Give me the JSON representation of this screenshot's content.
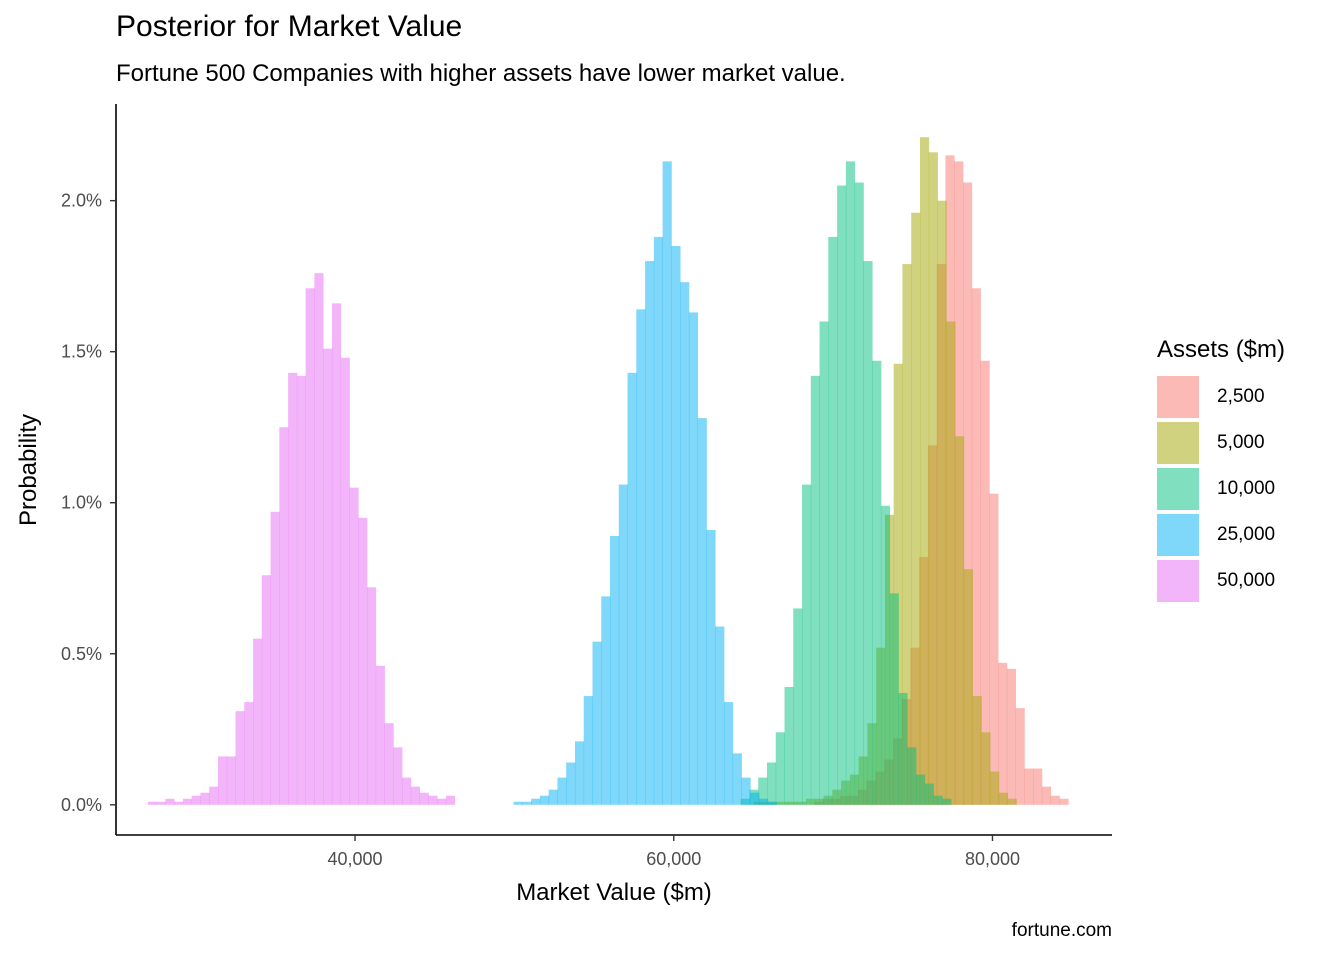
{
  "chart_data": {
    "type": "histogram",
    "title": "Posterior for Market Value",
    "subtitle": "Fortune 500 Companies with higher assets have lower market value.",
    "caption": "fortune.com",
    "xlabel": "Market Value ($m)",
    "ylabel": "Probability",
    "xlim": [
      25000,
      87500
    ],
    "ylim": [
      -0.001,
      0.0232
    ],
    "x_ticks": [
      40000,
      60000,
      80000
    ],
    "x_tick_labels": [
      "40,000",
      "60,000",
      "80,000"
    ],
    "y_ticks": [
      0,
      0.005,
      0.01,
      0.015,
      0.02
    ],
    "y_tick_labels": [
      "0.0%",
      "0.5%",
      "1.0%",
      "1.5%",
      "2.0%"
    ],
    "bar_opacity": 0.5,
    "legend": {
      "title": "Assets ($m)",
      "position": "right"
    },
    "series": [
      {
        "name": "2,500",
        "color": "#F8766D",
        "bins": [
          [
            68800,
            69350,
            0.0001
          ],
          [
            69350,
            69900,
            0.0002
          ],
          [
            69900,
            70450,
            0.0002
          ],
          [
            70450,
            71000,
            0.0003
          ],
          [
            71000,
            71550,
            0.0003
          ],
          [
            71550,
            72100,
            0.0005
          ],
          [
            72100,
            72650,
            0.0008
          ],
          [
            72650,
            73200,
            0.0011
          ],
          [
            73200,
            73750,
            0.0015
          ],
          [
            73750,
            74300,
            0.0022
          ],
          [
            74300,
            74850,
            0.0035
          ],
          [
            74850,
            75400,
            0.0052
          ],
          [
            75400,
            75950,
            0.0082
          ],
          [
            75950,
            76500,
            0.0119
          ],
          [
            76500,
            77050,
            0.0179
          ],
          [
            77050,
            77600,
            0.0215
          ],
          [
            77600,
            78150,
            0.0213
          ],
          [
            78150,
            78700,
            0.0206
          ],
          [
            78700,
            79250,
            0.0171
          ],
          [
            79250,
            79800,
            0.0147
          ],
          [
            79800,
            80350,
            0.0103
          ],
          [
            80350,
            80900,
            0.0047
          ],
          [
            80900,
            81450,
            0.0045
          ],
          [
            81450,
            82000,
            0.0032
          ],
          [
            82000,
            82550,
            0.0012
          ],
          [
            82550,
            83100,
            0.0012
          ],
          [
            83100,
            83650,
            0.0006
          ],
          [
            83650,
            84200,
            0.0003
          ],
          [
            84200,
            84750,
            0.0002
          ]
        ]
      },
      {
        "name": "5,000",
        "color": "#A3A500",
        "bins": [
          [
            65000,
            65550,
            0.0001
          ],
          [
            65550,
            66100,
            0.0001
          ],
          [
            66100,
            66650,
            0.0001
          ],
          [
            66650,
            67200,
            0.0001
          ],
          [
            67200,
            67750,
            0.0001
          ],
          [
            67750,
            68300,
            0.0001
          ],
          [
            68300,
            68850,
            0.0002
          ],
          [
            68850,
            69400,
            0.0002
          ],
          [
            69400,
            69950,
            0.0003
          ],
          [
            69950,
            70500,
            0.0005
          ],
          [
            70500,
            71050,
            0.0008
          ],
          [
            71050,
            71600,
            0.001
          ],
          [
            71600,
            72150,
            0.0016
          ],
          [
            72150,
            72700,
            0.0027
          ],
          [
            72700,
            73250,
            0.0052
          ],
          [
            73250,
            73800,
            0.0096
          ],
          [
            73800,
            74350,
            0.0146
          ],
          [
            74350,
            74900,
            0.0179
          ],
          [
            74900,
            75450,
            0.0196
          ],
          [
            75450,
            76000,
            0.0221
          ],
          [
            76000,
            76550,
            0.0216
          ],
          [
            76550,
            77100,
            0.02
          ],
          [
            77100,
            77650,
            0.016
          ],
          [
            77650,
            78200,
            0.0122
          ],
          [
            78200,
            78750,
            0.0078
          ],
          [
            78750,
            79300,
            0.0036
          ],
          [
            79300,
            79850,
            0.0024
          ],
          [
            79850,
            80400,
            0.0011
          ],
          [
            80400,
            80950,
            0.0004
          ],
          [
            80950,
            81500,
            0.0002
          ]
        ]
      },
      {
        "name": "10,000",
        "color": "#00BF7D",
        "bins": [
          [
            64200,
            64750,
            0.0002
          ],
          [
            64750,
            65300,
            0.0005
          ],
          [
            65300,
            65850,
            0.0009
          ],
          [
            65850,
            66400,
            0.0014
          ],
          [
            66400,
            66950,
            0.0024
          ],
          [
            66950,
            67500,
            0.0039
          ],
          [
            67500,
            68050,
            0.0065
          ],
          [
            68050,
            68600,
            0.0106
          ],
          [
            68600,
            69150,
            0.0142
          ],
          [
            69150,
            69700,
            0.016
          ],
          [
            69700,
            70250,
            0.0188
          ],
          [
            70250,
            70800,
            0.0205
          ],
          [
            70800,
            71350,
            0.0213
          ],
          [
            71350,
            71900,
            0.0206
          ],
          [
            71900,
            72450,
            0.018
          ],
          [
            72450,
            73000,
            0.0147
          ],
          [
            73000,
            73550,
            0.0099
          ],
          [
            73550,
            74100,
            0.007
          ],
          [
            74100,
            74650,
            0.0037
          ],
          [
            74650,
            75200,
            0.0019
          ],
          [
            75200,
            75750,
            0.001
          ],
          [
            75750,
            76300,
            0.0007
          ],
          [
            76300,
            76850,
            0.0003
          ],
          [
            76850,
            77400,
            0.0002
          ]
        ]
      },
      {
        "name": "25,000",
        "color": "#00B0F6",
        "bins": [
          [
            49950,
            50500,
            0.0001
          ],
          [
            50500,
            51050,
            0.0001
          ],
          [
            51050,
            51600,
            0.0002
          ],
          [
            51600,
            52150,
            0.0003
          ],
          [
            52150,
            52700,
            0.0005
          ],
          [
            52700,
            53250,
            0.0009
          ],
          [
            53250,
            53800,
            0.0014
          ],
          [
            53800,
            54350,
            0.0021
          ],
          [
            54350,
            54900,
            0.0036
          ],
          [
            54900,
            55450,
            0.0054
          ],
          [
            55450,
            56000,
            0.0069
          ],
          [
            56000,
            56550,
            0.0089
          ],
          [
            56550,
            57100,
            0.0106
          ],
          [
            57100,
            57650,
            0.0143
          ],
          [
            57650,
            58200,
            0.0164
          ],
          [
            58200,
            58750,
            0.018
          ],
          [
            58750,
            59300,
            0.0188
          ],
          [
            59300,
            59850,
            0.0213
          ],
          [
            59850,
            60400,
            0.0185
          ],
          [
            60400,
            60950,
            0.0173
          ],
          [
            60950,
            61500,
            0.0163
          ],
          [
            61500,
            62050,
            0.0128
          ],
          [
            62050,
            62600,
            0.0091
          ],
          [
            62600,
            63150,
            0.0059
          ],
          [
            63150,
            63700,
            0.0034
          ],
          [
            63700,
            64250,
            0.0017
          ],
          [
            64250,
            64800,
            0.0009
          ],
          [
            64800,
            65350,
            0.0004
          ],
          [
            65350,
            65900,
            0.0002
          ],
          [
            65900,
            66450,
            0.0001
          ]
        ]
      },
      {
        "name": "50,000",
        "color": "#E76BF3",
        "bins": [
          [
            27000,
            27550,
            0.0001
          ],
          [
            27550,
            28100,
            0.0001
          ],
          [
            28100,
            28650,
            0.0002
          ],
          [
            28650,
            29200,
            0.0001
          ],
          [
            29200,
            29750,
            0.0002
          ],
          [
            29750,
            30300,
            0.0003
          ],
          [
            30300,
            30850,
            0.0004
          ],
          [
            30850,
            31400,
            0.0006
          ],
          [
            31400,
            31950,
            0.0016
          ],
          [
            31950,
            32500,
            0.0016
          ],
          [
            32500,
            33050,
            0.0031
          ],
          [
            33050,
            33600,
            0.0034
          ],
          [
            33600,
            34150,
            0.0055
          ],
          [
            34150,
            34700,
            0.0076
          ],
          [
            34700,
            35250,
            0.0097
          ],
          [
            35250,
            35800,
            0.0125
          ],
          [
            35800,
            36350,
            0.0143
          ],
          [
            36350,
            36900,
            0.0142
          ],
          [
            36900,
            37450,
            0.0171
          ],
          [
            37450,
            38000,
            0.0176
          ],
          [
            38000,
            38550,
            0.0151
          ],
          [
            38550,
            39100,
            0.0166
          ],
          [
            39100,
            39650,
            0.0148
          ],
          [
            39650,
            40200,
            0.0105
          ],
          [
            40200,
            40750,
            0.0095
          ],
          [
            40750,
            41300,
            0.0072
          ],
          [
            41300,
            41850,
            0.0046
          ],
          [
            41850,
            42400,
            0.0027
          ],
          [
            42400,
            42950,
            0.0019
          ],
          [
            42950,
            43500,
            0.0009
          ],
          [
            43500,
            44050,
            0.0006
          ],
          [
            44050,
            44600,
            0.0004
          ],
          [
            44600,
            45150,
            0.0003
          ],
          [
            45150,
            45700,
            0.0002
          ],
          [
            45700,
            46250,
            0.0003
          ]
        ]
      }
    ]
  }
}
